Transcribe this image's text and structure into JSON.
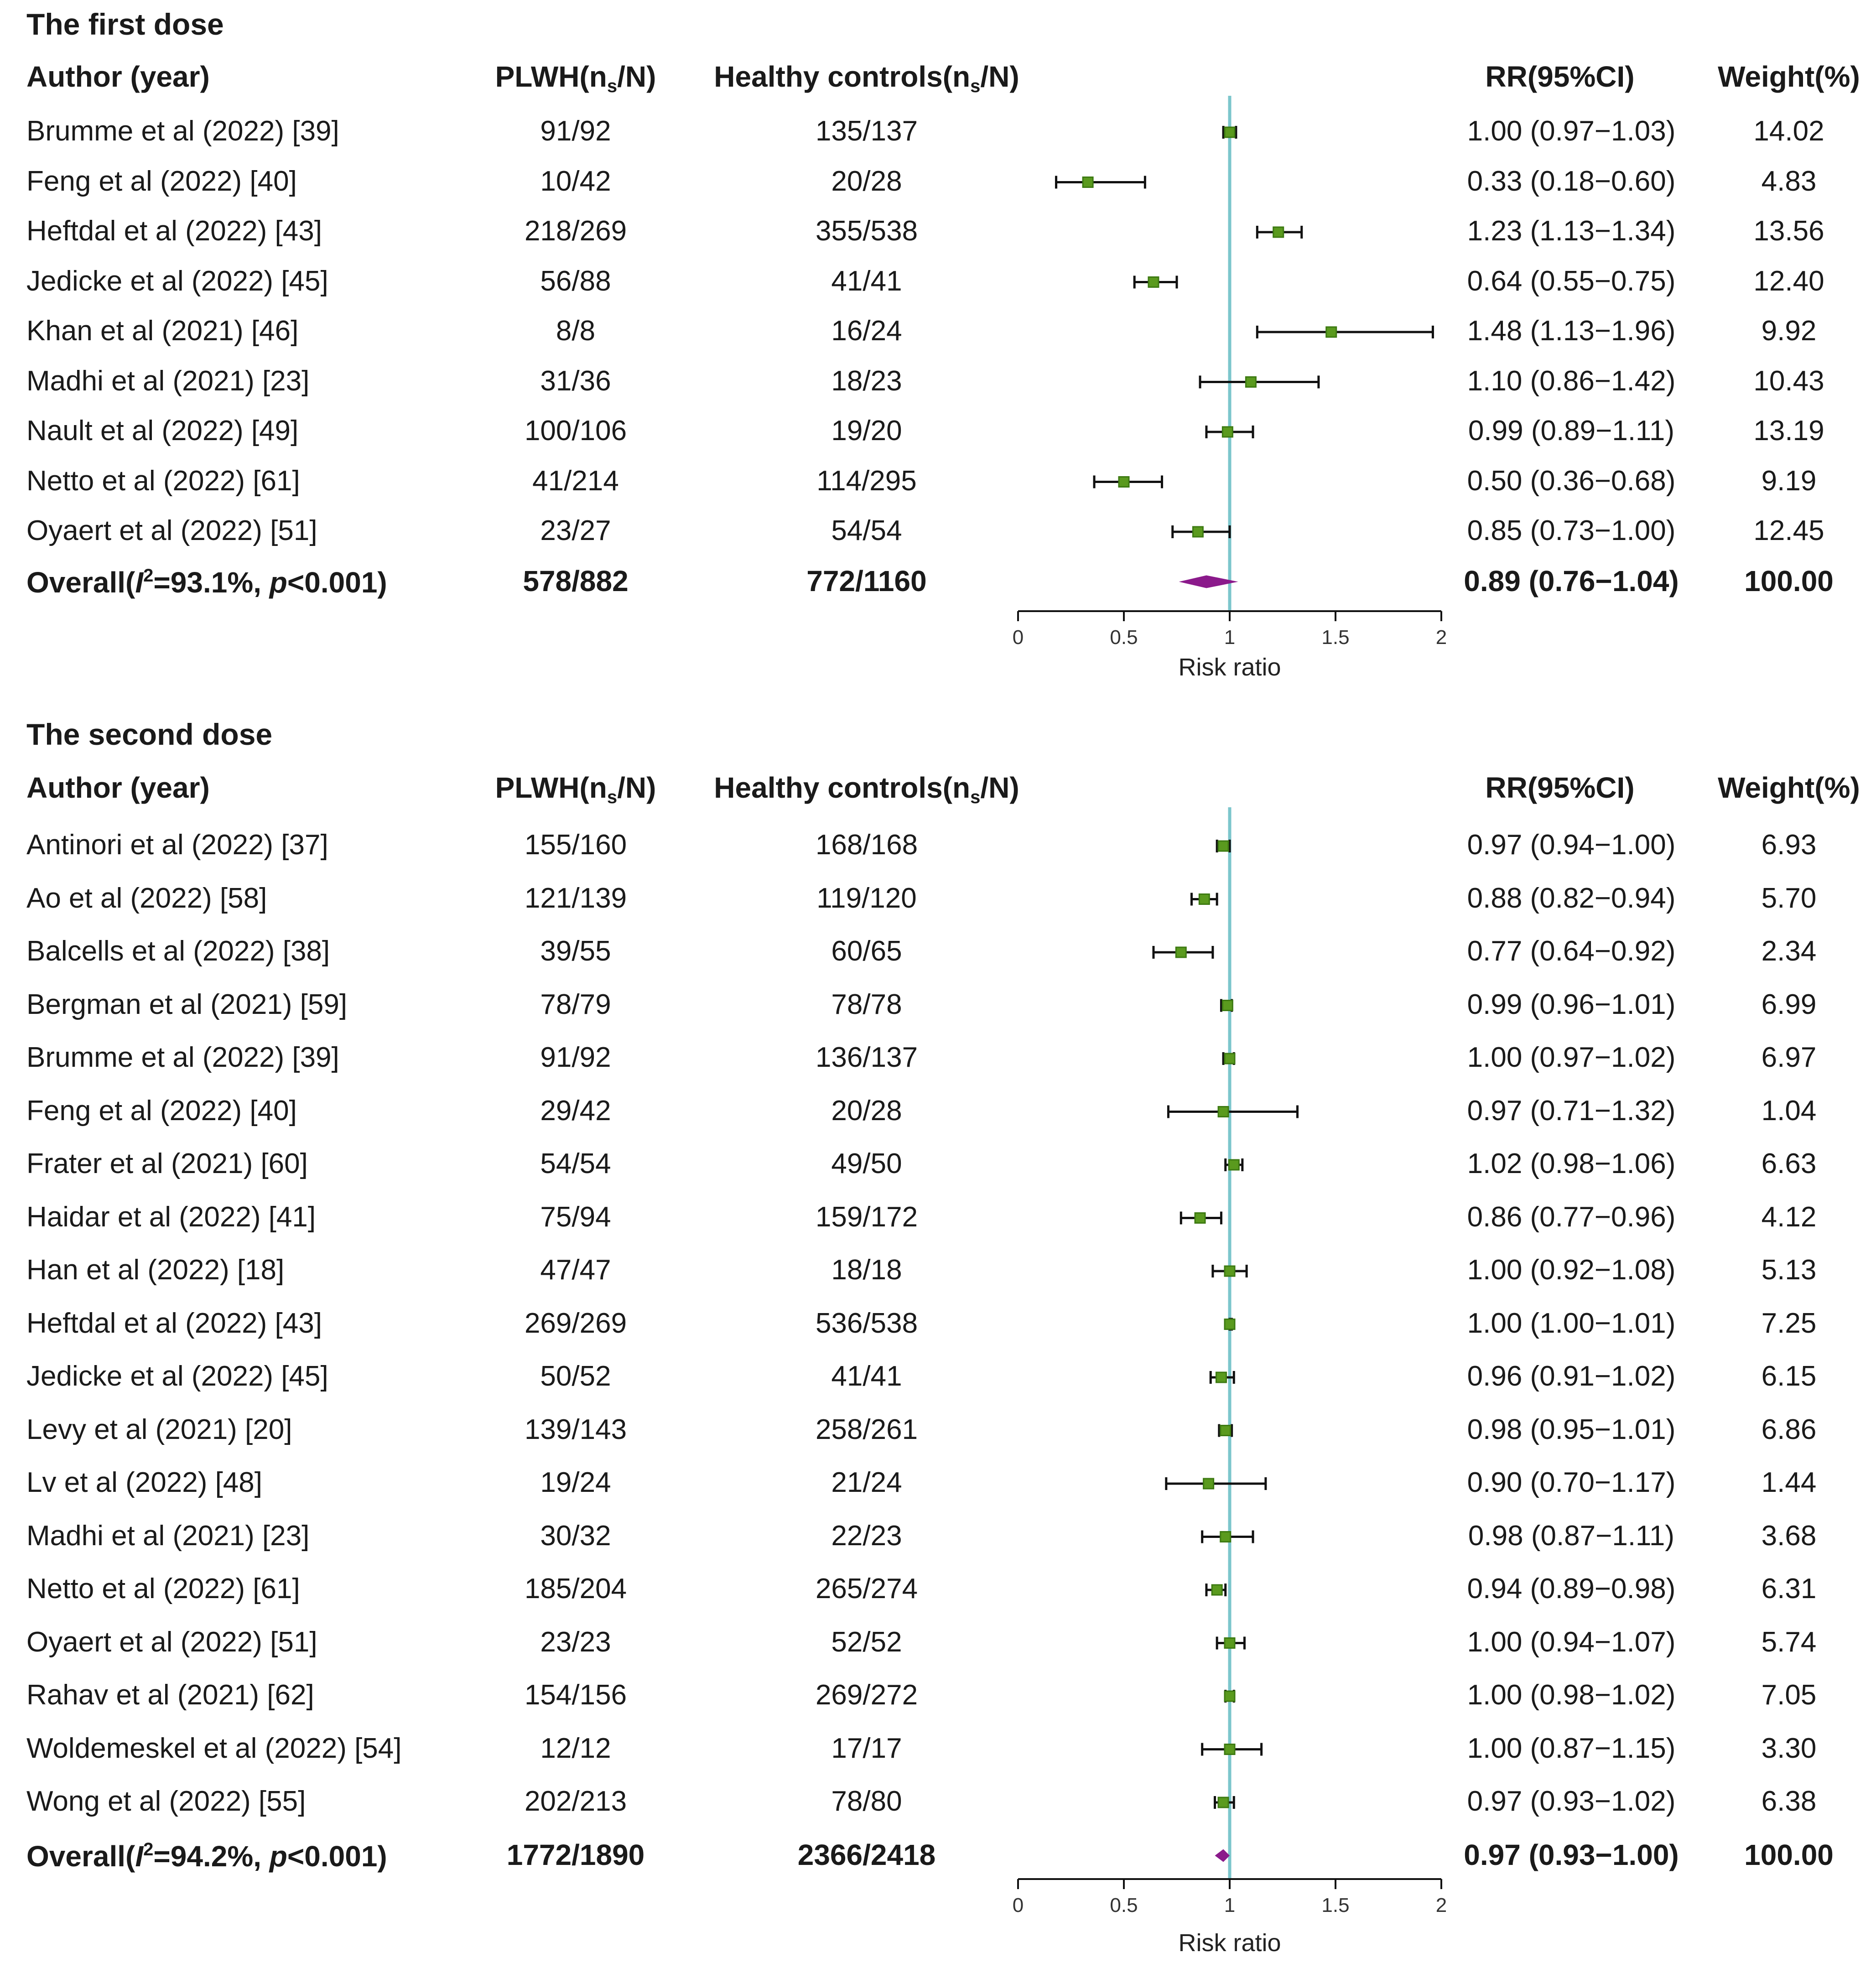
{
  "chart_data": [
    {
      "type": "forest",
      "title": "The first dose",
      "headers": {
        "author": "Author (year)",
        "plwh": "PLWH(n",
        "plwh_sub": "s",
        "plwh_end": "/N)",
        "hc": "Healthy controls(n",
        "hc_sub": "s",
        "hc_end": "/N)",
        "rr": "RR(95%CI)",
        "weight": "Weight(%)"
      },
      "studies": [
        {
          "author": "Brumme et al (2022) [39]",
          "plwh": "91/92",
          "hc": "135/137",
          "rr": 1.0,
          "lo": 0.97,
          "hi": 1.03,
          "ci_text": "1.00 (0.97−1.03)",
          "weight": "14.02"
        },
        {
          "author": "Feng et al (2022) [40]",
          "plwh": "10/42",
          "hc": "20/28",
          "rr": 0.33,
          "lo": 0.18,
          "hi": 0.6,
          "ci_text": "0.33 (0.18−0.60)",
          "weight": "4.83"
        },
        {
          "author": "Heftdal et al (2022) [43]",
          "plwh": "218/269",
          "hc": "355/538",
          "rr": 1.23,
          "lo": 1.13,
          "hi": 1.34,
          "ci_text": "1.23 (1.13−1.34)",
          "weight": "13.56"
        },
        {
          "author": "Jedicke et al (2022) [45]",
          "plwh": "56/88",
          "hc": "41/41",
          "rr": 0.64,
          "lo": 0.55,
          "hi": 0.75,
          "ci_text": "0.64 (0.55−0.75)",
          "weight": "12.40"
        },
        {
          "author": "Khan et al (2021) [46]",
          "plwh": "8/8",
          "hc": "16/24",
          "rr": 1.48,
          "lo": 1.13,
          "hi": 1.96,
          "ci_text": "1.48 (1.13−1.96)",
          "weight": "9.92"
        },
        {
          "author": "Madhi et al (2021) [23]",
          "plwh": "31/36",
          "hc": "18/23",
          "rr": 1.1,
          "lo": 0.86,
          "hi": 1.42,
          "ci_text": "1.10 (0.86−1.42)",
          "weight": "10.43"
        },
        {
          "author": "Nault et al (2022) [49]",
          "plwh": "100/106",
          "hc": "19/20",
          "rr": 0.99,
          "lo": 0.89,
          "hi": 1.11,
          "ci_text": "0.99 (0.89−1.11)",
          "weight": "13.19"
        },
        {
          "author": "Netto et al (2022) [61]",
          "plwh": "41/214",
          "hc": "114/295",
          "rr": 0.5,
          "lo": 0.36,
          "hi": 0.68,
          "ci_text": "0.50 (0.36−0.68)",
          "weight": "9.19"
        },
        {
          "author": "Oyaert et al (2022) [51]",
          "plwh": "23/27",
          "hc": "54/54",
          "rr": 0.85,
          "lo": 0.73,
          "hi": 1.0,
          "ci_text": "0.85 (0.73−1.00)",
          "weight": "12.45"
        }
      ],
      "overall": {
        "label_pre": "Overall(",
        "i2_symbol": "I",
        "i2_sup": "2",
        "label_mid": "=93.1%, ",
        "p_symbol": "p",
        "label_end": "<0.001)",
        "plwh": "578/882",
        "hc": "772/1160",
        "rr": 0.89,
        "lo": 0.76,
        "hi": 1.04,
        "ci_text": "0.89 (0.76−1.04)",
        "weight": "100.00"
      },
      "x_axis": {
        "label": "Risk ratio",
        "min": 0,
        "max": 2,
        "ticks": [
          0,
          0.5,
          1,
          1.5,
          2
        ],
        "tick_labels": [
          "0",
          "0.5",
          "1",
          "1.5",
          "2"
        ],
        "reference_line": 1
      }
    },
    {
      "type": "forest",
      "title": "The second dose",
      "headers": {
        "author": "Author (year)",
        "plwh": "PLWH(n",
        "plwh_sub": "s",
        "plwh_end": "/N)",
        "hc": "Healthy controls(n",
        "hc_sub": "s",
        "hc_end": "/N)",
        "rr": "RR(95%CI)",
        "weight": "Weight(%)"
      },
      "studies": [
        {
          "author": "Antinori et al (2022) [37]",
          "plwh": "155/160",
          "hc": "168/168",
          "rr": 0.97,
          "lo": 0.94,
          "hi": 1.0,
          "ci_text": "0.97 (0.94−1.00)",
          "weight": "6.93"
        },
        {
          "author": "Ao et al (2022) [58]",
          "plwh": "121/139",
          "hc": "119/120",
          "rr": 0.88,
          "lo": 0.82,
          "hi": 0.94,
          "ci_text": "0.88 (0.82−0.94)",
          "weight": "5.70"
        },
        {
          "author": "Balcells et al (2022) [38]",
          "plwh": "39/55",
          "hc": "60/65",
          "rr": 0.77,
          "lo": 0.64,
          "hi": 0.92,
          "ci_text": "0.77 (0.64−0.92)",
          "weight": "2.34"
        },
        {
          "author": "Bergman et al (2021) [59]",
          "plwh": "78/79",
          "hc": "78/78",
          "rr": 0.99,
          "lo": 0.96,
          "hi": 1.01,
          "ci_text": "0.99 (0.96−1.01)",
          "weight": "6.99"
        },
        {
          "author": "Brumme et al (2022) [39]",
          "plwh": "91/92",
          "hc": "136/137",
          "rr": 1.0,
          "lo": 0.97,
          "hi": 1.02,
          "ci_text": "1.00 (0.97−1.02)",
          "weight": "6.97"
        },
        {
          "author": "Feng et al (2022) [40]",
          "plwh": "29/42",
          "hc": "20/28",
          "rr": 0.97,
          "lo": 0.71,
          "hi": 1.32,
          "ci_text": "0.97 (0.71−1.32)",
          "weight": "1.04"
        },
        {
          "author": "Frater et al (2021) [60]",
          "plwh": "54/54",
          "hc": "49/50",
          "rr": 1.02,
          "lo": 0.98,
          "hi": 1.06,
          "ci_text": "1.02 (0.98−1.06)",
          "weight": "6.63"
        },
        {
          "author": "Haidar et al (2022) [41]",
          "plwh": "75/94",
          "hc": "159/172",
          "rr": 0.86,
          "lo": 0.77,
          "hi": 0.96,
          "ci_text": "0.86 (0.77−0.96)",
          "weight": "4.12"
        },
        {
          "author": "Han et al (2022) [18]",
          "plwh": "47/47",
          "hc": "18/18",
          "rr": 1.0,
          "lo": 0.92,
          "hi": 1.08,
          "ci_text": "1.00 (0.92−1.08)",
          "weight": "5.13"
        },
        {
          "author": "Heftdal et al (2022) [43]",
          "plwh": "269/269",
          "hc": "536/538",
          "rr": 1.0,
          "lo": 1.0,
          "hi": 1.01,
          "ci_text": "1.00 (1.00−1.01)",
          "weight": "7.25"
        },
        {
          "author": "Jedicke et al (2022) [45]",
          "plwh": "50/52",
          "hc": "41/41",
          "rr": 0.96,
          "lo": 0.91,
          "hi": 1.02,
          "ci_text": "0.96 (0.91−1.02)",
          "weight": "6.15"
        },
        {
          "author": "Levy et al (2021) [20]",
          "plwh": "139/143",
          "hc": "258/261",
          "rr": 0.98,
          "lo": 0.95,
          "hi": 1.01,
          "ci_text": "0.98 (0.95−1.01)",
          "weight": "6.86"
        },
        {
          "author": "Lv et al (2022) [48]",
          "plwh": "19/24",
          "hc": "21/24",
          "rr": 0.9,
          "lo": 0.7,
          "hi": 1.17,
          "ci_text": "0.90 (0.70−1.17)",
          "weight": "1.44"
        },
        {
          "author": "Madhi et al (2021) [23]",
          "plwh": "30/32",
          "hc": "22/23",
          "rr": 0.98,
          "lo": 0.87,
          "hi": 1.11,
          "ci_text": "0.98 (0.87−1.11)",
          "weight": "3.68"
        },
        {
          "author": "Netto et al (2022) [61]",
          "plwh": "185/204",
          "hc": "265/274",
          "rr": 0.94,
          "lo": 0.89,
          "hi": 0.98,
          "ci_text": "0.94 (0.89−0.98)",
          "weight": "6.31"
        },
        {
          "author": "Oyaert et al (2022) [51]",
          "plwh": "23/23",
          "hc": "52/52",
          "rr": 1.0,
          "lo": 0.94,
          "hi": 1.07,
          "ci_text": "1.00 (0.94−1.07)",
          "weight": "5.74"
        },
        {
          "author": "Rahav et al (2021) [62]",
          "plwh": "154/156",
          "hc": "269/272",
          "rr": 1.0,
          "lo": 0.98,
          "hi": 1.02,
          "ci_text": "1.00 (0.98−1.02)",
          "weight": "7.05"
        },
        {
          "author": "Woldemeskel et al (2022) [54]",
          "plwh": "12/12",
          "hc": "17/17",
          "rr": 1.0,
          "lo": 0.87,
          "hi": 1.15,
          "ci_text": "1.00 (0.87−1.15)",
          "weight": "3.30"
        },
        {
          "author": "Wong et al (2022) [55]",
          "plwh": "202/213",
          "hc": "78/80",
          "rr": 0.97,
          "lo": 0.93,
          "hi": 1.02,
          "ci_text": "0.97 (0.93−1.02)",
          "weight": "6.38"
        }
      ],
      "overall": {
        "label_pre": "Overall(",
        "i2_symbol": "I",
        "i2_sup": "2",
        "label_mid": "=94.2%, ",
        "p_symbol": "p",
        "label_end": "<0.001)",
        "plwh": "1772/1890",
        "hc": "2366/2418",
        "rr": 0.97,
        "lo": 0.93,
        "hi": 1.0,
        "ci_text": "0.97 (0.93−1.00)",
        "weight": "100.00"
      },
      "x_axis": {
        "label": "Risk ratio",
        "min": 0,
        "max": 2,
        "ticks": [
          0,
          0.5,
          1,
          1.5,
          2
        ],
        "tick_labels": [
          "0",
          "0.5",
          "1",
          "1.5",
          "2"
        ],
        "reference_line": 1
      }
    }
  ],
  "colors": {
    "point": "#5a9a1e",
    "point_dark": "#3d7a12",
    "diamond": "#8b1a8b",
    "reference_line": "#7cc6cc",
    "text": "#1a1a1a"
  }
}
